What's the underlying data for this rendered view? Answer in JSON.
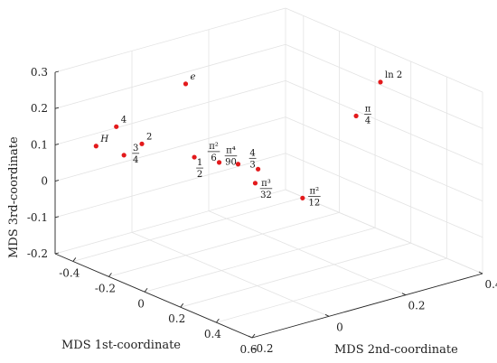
{
  "chart_data": {
    "type": "scatter",
    "projection": "3d",
    "title": "",
    "xlabel": "MDS 1st-coordinate",
    "ylabel": "MDS 2nd-coordinate",
    "zlabel": "MDS 3rd-coordinate",
    "xlim": [
      -0.5,
      0.6
    ],
    "ylim": [
      -0.2,
      0.4
    ],
    "zlim": [
      -0.2,
      0.3
    ],
    "x_ticks": [
      "-0.4",
      "-0.2",
      "0",
      "0.2",
      "0.4",
      "0.6"
    ],
    "y_ticks": [
      "-0.2",
      "0",
      "0.2",
      "0.4"
    ],
    "z_ticks": [
      "-0.2",
      "-0.1",
      "0",
      "0.1",
      "0.2",
      "0.3"
    ],
    "grid": true,
    "marker_color": "#e31a1c",
    "points": [
      {
        "label": "ln 2",
        "x": 0.18,
        "y": 0.33,
        "z": 0.26
      },
      {
        "label": "π/4",
        "x": 0.28,
        "y": 0.22,
        "z": 0.22
      },
      {
        "label": "e",
        "x": -0.35,
        "y": 0.07,
        "z": 0.22
      },
      {
        "label": "2",
        "x": -0.23,
        "y": -0.1,
        "z": 0.13
      },
      {
        "label": "4",
        "x": -0.48,
        "y": -0.05,
        "z": 0.11
      },
      {
        "label": "3/4",
        "x": -0.18,
        "y": -0.17,
        "z": 0.13
      },
      {
        "label": "π²/6",
        "x": 0.03,
        "y": -0.02,
        "z": 0.11
      },
      {
        "label": "4/3",
        "x": 0.14,
        "y": 0.03,
        "z": 0.1
      },
      {
        "label": "1/2",
        "x": 0.02,
        "y": -0.08,
        "z": 0.14
      },
      {
        "label": "π⁴/90",
        "x": 0.2,
        "y": -0.05,
        "z": 0.15
      },
      {
        "label": "π²/12",
        "x": 0.41,
        "y": 0.02,
        "z": 0.08
      },
      {
        "label": "π³/32",
        "x": 0.36,
        "y": -0.08,
        "z": 0.14
      },
      {
        "label": "H",
        "x": -0.4,
        "y": -0.14,
        "z": 0.1
      }
    ]
  }
}
